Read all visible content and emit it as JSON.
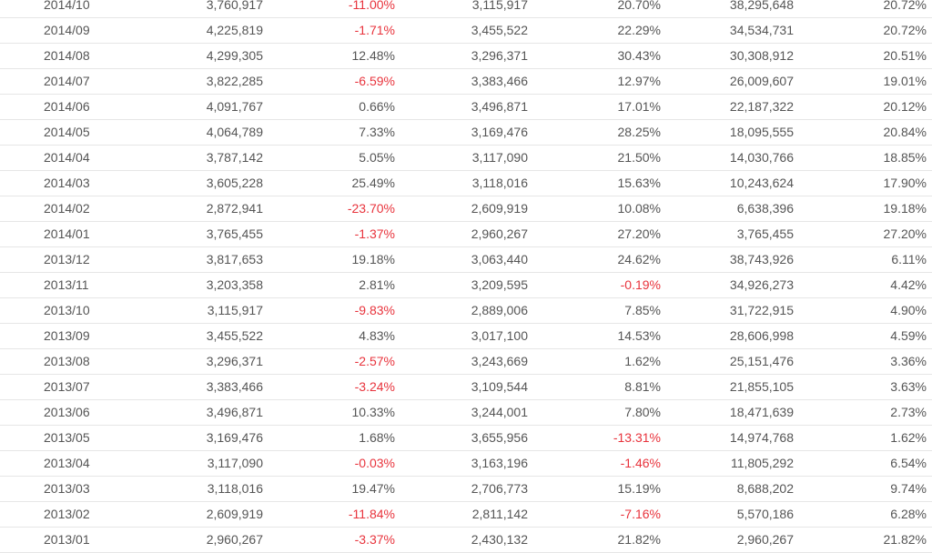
{
  "colors": {
    "negative": "#e8333c",
    "text": "#555555",
    "divider": "#e6e6e6"
  },
  "rows": [
    [
      "2014/10",
      "3,760,917",
      "-11.00%",
      "3,115,917",
      "20.70%",
      "38,295,648",
      "20.72%"
    ],
    [
      "2014/09",
      "4,225,819",
      "-1.71%",
      "3,455,522",
      "22.29%",
      "34,534,731",
      "20.72%"
    ],
    [
      "2014/08",
      "4,299,305",
      "12.48%",
      "3,296,371",
      "30.43%",
      "30,308,912",
      "20.51%"
    ],
    [
      "2014/07",
      "3,822,285",
      "-6.59%",
      "3,383,466",
      "12.97%",
      "26,009,607",
      "19.01%"
    ],
    [
      "2014/06",
      "4,091,767",
      "0.66%",
      "3,496,871",
      "17.01%",
      "22,187,322",
      "20.12%"
    ],
    [
      "2014/05",
      "4,064,789",
      "7.33%",
      "3,169,476",
      "28.25%",
      "18,095,555",
      "20.84%"
    ],
    [
      "2014/04",
      "3,787,142",
      "5.05%",
      "3,117,090",
      "21.50%",
      "14,030,766",
      "18.85%"
    ],
    [
      "2014/03",
      "3,605,228",
      "25.49%",
      "3,118,016",
      "15.63%",
      "10,243,624",
      "17.90%"
    ],
    [
      "2014/02",
      "2,872,941",
      "-23.70%",
      "2,609,919",
      "10.08%",
      "6,638,396",
      "19.18%"
    ],
    [
      "2014/01",
      "3,765,455",
      "-1.37%",
      "2,960,267",
      "27.20%",
      "3,765,455",
      "27.20%"
    ],
    [
      "2013/12",
      "3,817,653",
      "19.18%",
      "3,063,440",
      "24.62%",
      "38,743,926",
      "6.11%"
    ],
    [
      "2013/11",
      "3,203,358",
      "2.81%",
      "3,209,595",
      "-0.19%",
      "34,926,273",
      "4.42%"
    ],
    [
      "2013/10",
      "3,115,917",
      "-9.83%",
      "2,889,006",
      "7.85%",
      "31,722,915",
      "4.90%"
    ],
    [
      "2013/09",
      "3,455,522",
      "4.83%",
      "3,017,100",
      "14.53%",
      "28,606,998",
      "4.59%"
    ],
    [
      "2013/08",
      "3,296,371",
      "-2.57%",
      "3,243,669",
      "1.62%",
      "25,151,476",
      "3.36%"
    ],
    [
      "2013/07",
      "3,383,466",
      "-3.24%",
      "3,109,544",
      "8.81%",
      "21,855,105",
      "3.63%"
    ],
    [
      "2013/06",
      "3,496,871",
      "10.33%",
      "3,244,001",
      "7.80%",
      "18,471,639",
      "2.73%"
    ],
    [
      "2013/05",
      "3,169,476",
      "1.68%",
      "3,655,956",
      "-13.31%",
      "14,974,768",
      "1.62%"
    ],
    [
      "2013/04",
      "3,117,090",
      "-0.03%",
      "3,163,196",
      "-1.46%",
      "11,805,292",
      "6.54%"
    ],
    [
      "2013/03",
      "3,118,016",
      "19.47%",
      "2,706,773",
      "15.19%",
      "8,688,202",
      "9.74%"
    ],
    [
      "2013/02",
      "2,609,919",
      "-11.84%",
      "2,811,142",
      "-7.16%",
      "5,570,186",
      "6.28%"
    ],
    [
      "2013/01",
      "2,960,267",
      "-3.37%",
      "2,430,132",
      "21.82%",
      "2,960,267",
      "21.82%"
    ]
  ]
}
